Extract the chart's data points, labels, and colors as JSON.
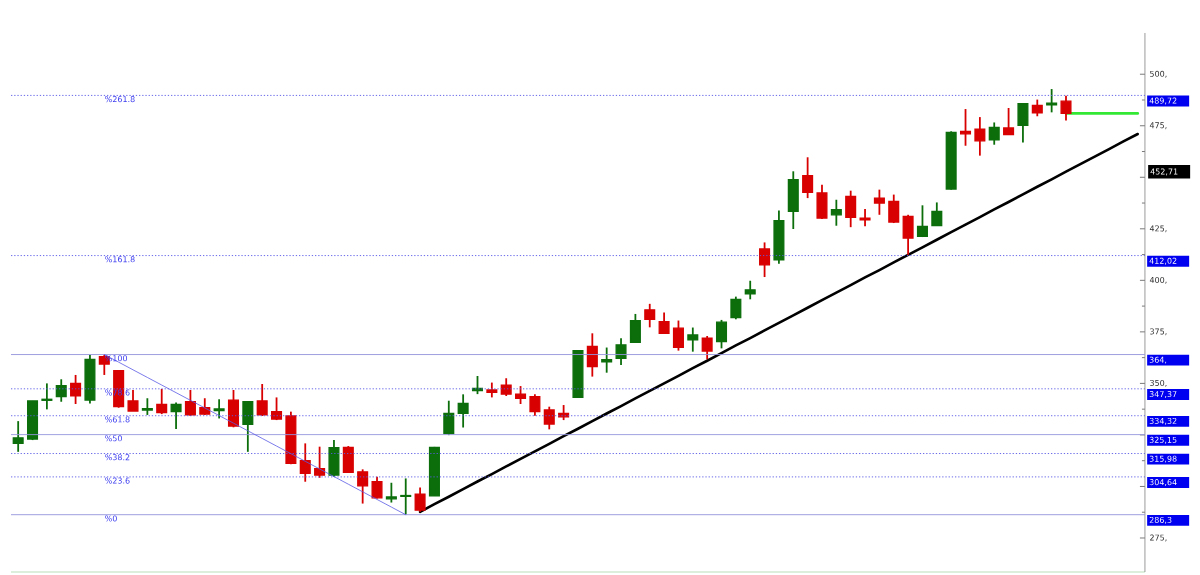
{
  "chart_data": {
    "type": "candlestick",
    "categories": [
      null,
      null,
      null,
      null,
      null,
      null,
      null,
      null,
      null,
      null,
      null,
      null,
      null,
      null,
      null,
      null,
      null,
      null,
      null,
      null,
      null,
      null,
      null,
      null,
      null,
      null,
      null,
      null,
      null,
      null,
      null,
      null,
      null,
      null,
      null,
      null,
      null,
      null,
      null,
      null,
      null,
      null,
      null,
      null,
      null,
      null,
      null,
      null,
      null,
      null,
      null,
      null,
      null,
      null,
      null,
      null,
      null,
      null,
      null,
      null,
      null,
      null,
      null,
      null,
      null,
      null,
      null,
      null,
      null,
      null,
      null,
      null,
      null,
      null,
      null,
      null,
      null,
      null,
      null
    ],
    "ohlc": [
      [
        320.9,
        331.7,
        316.8,
        323.6
      ],
      [
        323.0,
        341.5,
        322.5,
        341.5
      ],
      [
        341.8,
        350.0,
        337.4,
        342.3
      ],
      [
        343.6,
        352.0,
        341.1,
        348.9
      ],
      [
        350.0,
        354.1,
        340.0,
        343.9
      ],
      [
        341.9,
        363.8,
        340.3,
        361.7
      ],
      [
        363.0,
        364.0,
        354.1,
        359.4
      ],
      [
        356.2,
        356.5,
        338.2,
        338.7
      ],
      [
        341.5,
        346.8,
        336.6,
        336.6
      ],
      [
        337.1,
        342.8,
        334.7,
        337.8
      ],
      [
        339.8,
        347.3,
        335.1,
        335.8
      ],
      [
        336.3,
        340.7,
        327.9,
        339.8
      ],
      [
        341.1,
        346.8,
        334.2,
        334.7
      ],
      [
        338.2,
        342.8,
        334.7,
        335.1
      ],
      [
        336.8,
        342.3,
        333.0,
        337.6
      ],
      [
        341.9,
        346.8,
        328.7,
        329.3
      ],
      [
        330.1,
        341.1,
        316.8,
        341.1
      ],
      [
        341.5,
        349.7,
        334.2,
        334.7
      ],
      [
        336.3,
        343.2,
        332.2,
        332.7
      ],
      [
        334.2,
        336.3,
        310.8,
        311.2
      ],
      [
        312.5,
        320.9,
        302.3,
        306.3
      ],
      [
        308.7,
        319.3,
        304.2,
        305.5
      ],
      [
        305.5,
        322.5,
        304.7,
        318.8
      ],
      [
        319.0,
        319.6,
        306.8,
        306.8
      ],
      [
        307.1,
        308.3,
        291.7,
        300.3
      ],
      [
        302.3,
        304.7,
        294.2,
        294.5
      ],
      [
        294.0,
        301.8,
        292.2,
        294.9
      ],
      [
        295.2,
        303.9,
        286.3,
        295.6
      ],
      [
        296.3,
        299.5,
        287.7,
        288.5
      ],
      [
        295.4,
        319.2,
        295.4,
        318.9
      ],
      [
        325.7,
        341.6,
        324.9,
        335.5
      ],
      [
        335.5,
        344.7,
        328.6,
        340.3
      ],
      [
        346.5,
        353.6,
        344.8,
        347.6
      ],
      [
        346.8,
        350.4,
        343.2,
        345.7
      ],
      [
        349.2,
        352.5,
        343.9,
        344.8
      ],
      [
        344.8,
        348.7,
        340.0,
        342.7
      ],
      [
        343.6,
        344.7,
        334.3,
        336.3
      ],
      [
        337.1,
        338.7,
        327.7,
        330.3
      ],
      [
        335.5,
        339.5,
        332.2,
        333.8
      ],
      [
        343.2,
        366.2,
        342.9,
        365.9
      ],
      [
        367.9,
        374.3,
        353.3,
        358.1
      ],
      [
        360.5,
        367.4,
        355.2,
        361.5
      ],
      [
        362.2,
        371.9,
        358.9,
        368.7
      ],
      [
        369.9,
        383.7,
        369.9,
        380.5
      ],
      [
        385.7,
        388.6,
        377.2,
        381.1
      ],
      [
        380.0,
        384.4,
        374.3,
        374.3
      ],
      [
        376.8,
        380.5,
        365.9,
        367.5
      ],
      [
        371.1,
        377.1,
        365.4,
        373.5
      ],
      [
        371.9,
        373.0,
        361.7,
        365.7
      ],
      [
        370.3,
        380.8,
        367.0,
        379.7
      ],
      [
        381.9,
        392.1,
        381.1,
        390.8
      ],
      [
        393.4,
        399.8,
        390.8,
        395.4
      ],
      [
        415.2,
        418.4,
        401.6,
        407.5
      ],
      [
        410.0,
        433.9,
        408.0,
        428.9
      ],
      [
        433.5,
        452.9,
        424.9,
        448.8
      ],
      [
        450.8,
        459.7,
        439.9,
        442.7
      ],
      [
        442.4,
        446.4,
        429.7,
        430.2
      ],
      [
        431.8,
        439.1,
        426.5,
        434.3
      ],
      [
        440.7,
        443.5,
        425.8,
        430.5
      ],
      [
        430.2,
        434.6,
        426.2,
        429.4
      ],
      [
        439.9,
        444.0,
        431.8,
        437.5
      ],
      [
        438.3,
        441.6,
        427.8,
        428.3
      ],
      [
        431.0,
        431.8,
        412.4,
        420.5
      ],
      [
        421.3,
        436.4,
        421.0,
        426.2
      ],
      [
        426.5,
        437.8,
        426.5,
        433.5
      ],
      [
        444.3,
        472.3,
        444.0,
        471.8
      ],
      [
        472.3,
        483.1,
        465.3,
        471.1
      ],
      [
        473.4,
        479.2,
        460.5,
        467.7
      ],
      [
        468.2,
        476.6,
        465.8,
        474.2
      ],
      [
        473.9,
        483.6,
        470.7,
        470.7
      ],
      [
        475.2,
        486.0,
        466.9,
        485.7
      ],
      [
        484.9,
        487.7,
        479.6,
        481.2
      ],
      [
        485.2,
        492.8,
        481.5,
        486.0
      ],
      [
        486.9,
        489.6,
        477.5,
        481.0
      ],
      null,
      null,
      null,
      null,
      null
    ],
    "series": [
      {
        "type": "line",
        "color": "#5a5ae6",
        "values": [
          null,
          null,
          null,
          null,
          null,
          null,
          364,
          360.3,
          356.6,
          352.9,
          349.2,
          345.5,
          341.8,
          338.1,
          334.4,
          330.7,
          327,
          323.3,
          319.6,
          315.9,
          312.2,
          308.5,
          304.8,
          301.1,
          297.4,
          293.7,
          290,
          286.3,
          null,
          null,
          null,
          null,
          null,
          null,
          null,
          null,
          null,
          null,
          null,
          null,
          null,
          null,
          null,
          null,
          null,
          null,
          null,
          null,
          null,
          null,
          null,
          null,
          null,
          null,
          null,
          null,
          null,
          null,
          null,
          null,
          null,
          null,
          null,
          null,
          null,
          null,
          null,
          null,
          null,
          null,
          null,
          null,
          null,
          null,
          null,
          null,
          null,
          null,
          null
        ]
      },
      {
        "type": "line",
        "color": "#000000",
        "values": [
          null,
          null,
          null,
          null,
          null,
          null,
          null,
          null,
          null,
          null,
          null,
          null,
          null,
          null,
          null,
          null,
          null,
          null,
          null,
          null,
          null,
          null,
          null,
          null,
          null,
          null,
          null,
          null,
          287.7,
          291.4,
          295.0,
          298.7,
          302.4,
          306.0,
          309.7,
          313.4,
          317.0,
          320.7,
          324.4,
          328.0,
          331.7,
          335.4,
          339.0,
          342.7,
          346.4,
          350.0,
          353.7,
          357.4,
          361.0,
          364.7,
          368.4,
          372.0,
          375.7,
          379.4,
          383.0,
          386.7,
          390.4,
          394.0,
          397.7,
          401.4,
          405.0,
          408.7,
          412.4,
          416.0,
          419.7,
          423.4,
          427.0,
          430.7,
          434.4,
          438.0,
          441.7,
          445.4,
          449.0,
          452.71,
          456.4,
          460.0,
          463.7,
          467.4,
          471.0
        ]
      },
      {
        "type": "line",
        "color": "#33e833",
        "values": [
          null,
          null,
          null,
          null,
          null,
          null,
          null,
          null,
          null,
          null,
          null,
          null,
          null,
          null,
          null,
          null,
          null,
          null,
          null,
          null,
          null,
          null,
          null,
          null,
          null,
          null,
          null,
          null,
          null,
          null,
          null,
          null,
          null,
          null,
          null,
          null,
          null,
          null,
          null,
          null,
          null,
          null,
          null,
          null,
          null,
          null,
          null,
          null,
          null,
          null,
          null,
          null,
          null,
          null,
          null,
          null,
          null,
          null,
          null,
          null,
          null,
          null,
          null,
          null,
          null,
          null,
          null,
          null,
          null,
          null,
          null,
          null,
          null,
          481,
          481,
          481,
          481,
          481,
          481
        ]
      }
    ],
    "ref_lines": [
      {
        "axis": "y",
        "value": 489.72,
        "label": "489,72",
        "color": "#5a5ae6",
        "line_style": "dotted"
      },
      {
        "axis": "y",
        "value": 412.02,
        "label": "412,02",
        "color": "#5a5ae6",
        "line_style": "dotted"
      },
      {
        "axis": "y",
        "value": 364,
        "label": "364,",
        "color": "#9494dc",
        "line_style": "solid"
      },
      {
        "axis": "y",
        "value": 347.37,
        "label": "347,37",
        "color": "#5a5ae6",
        "line_style": "dotted"
      },
      {
        "axis": "y",
        "value": 334.32,
        "label": "334,32",
        "color": "#5a5ae6",
        "line_style": "dotted"
      },
      {
        "axis": "y",
        "value": 325.15,
        "label": "325,15",
        "color": "#9494dc",
        "line_style": "solid"
      },
      {
        "axis": "y",
        "value": 315.98,
        "label": "315,98",
        "color": "#5a5ae6",
        "line_style": "dotted"
      },
      {
        "axis": "y",
        "value": 304.64,
        "label": "304,64",
        "color": "#5a5ae6",
        "line_style": "dotted"
      },
      {
        "axis": "y",
        "value": 286.3,
        "label": "286,3",
        "color": "#9494dc",
        "line_style": "solid"
      }
    ],
    "annotations": [
      "%261.8",
      "%161.8",
      "%100",
      "%78.6",
      "%61.8",
      "%50",
      "%38.2",
      "%23.6",
      "%0"
    ],
    "ylim": [
      258.5,
      520
    ],
    "yticks": [
      {
        "value": 275,
        "label": "275,"
      },
      {
        "value": 300,
        "label": null
      },
      {
        "value": 325,
        "label": null
      },
      {
        "value": 350,
        "label": "350,"
      },
      {
        "value": 375,
        "label": "375,"
      },
      {
        "value": 400,
        "label": "400,"
      },
      {
        "value": 425,
        "label": "425,"
      },
      {
        "value": 450,
        "label": null
      },
      {
        "value": 452.71,
        "label": "452,71"
      },
      {
        "value": 475,
        "label": "475,"
      },
      {
        "value": 500,
        "label": "500,"
      }
    ],
    "tick_labels": "y"
  }
}
